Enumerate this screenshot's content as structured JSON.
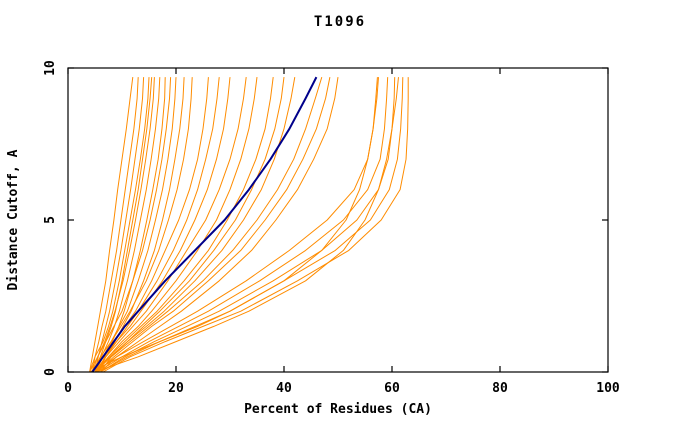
{
  "chart_data": {
    "type": "line",
    "title": "T1096",
    "xlabel": "Percent of Residues (CA)",
    "ylabel": "Distance Cutoff, A",
    "xlim": [
      0,
      100
    ],
    "ylim": [
      0,
      10
    ],
    "x_ticks": [
      0,
      20,
      40,
      60,
      80,
      100
    ],
    "y_ticks": [
      0,
      5,
      10
    ],
    "grid": false,
    "legend": "none",
    "colors": {
      "ensemble": "#FF8C00",
      "highlight": "#00008B",
      "frame": "#000000",
      "background": "#FFFFFF"
    },
    "y_grid": [
      0,
      0.5,
      1,
      1.5,
      2,
      3,
      4,
      5,
      6,
      7,
      8,
      9,
      9.7
    ],
    "series": [
      {
        "name": "highlighted-model",
        "color": "#00008B",
        "width": 2,
        "x": [
          4.5,
          6.5,
          8.5,
          10.5,
          13,
          18,
          23.5,
          29,
          33.5,
          37.5,
          41,
          44,
          46
        ]
      }
    ],
    "ensemble": {
      "name": "predicted-models",
      "color": "#FF8C00",
      "width": 1,
      "curves": [
        [
          4,
          4.5,
          5,
          5.5,
          6,
          7,
          7.7,
          8.5,
          9.2,
          10,
          10.8,
          11.5,
          12
        ],
        [
          4.5,
          5,
          5.7,
          6.3,
          7,
          8,
          9,
          9.8,
          10.6,
          11.4,
          12.2,
          12.8,
          13
        ],
        [
          5,
          5.6,
          6.3,
          7,
          7.7,
          8.8,
          9.8,
          10.7,
          11.6,
          12.4,
          13.2,
          13.8,
          14
        ],
        [
          4,
          5,
          6.5,
          7.5,
          8.3,
          9.5,
          10.5,
          11.5,
          12.5,
          13.4,
          14.2,
          14.8,
          15
        ],
        [
          5,
          6,
          7,
          8,
          8.8,
          10,
          11,
          12,
          13,
          13.8,
          14.6,
          15.2,
          15.5
        ],
        [
          4.5,
          5.5,
          6.8,
          7.8,
          8.7,
          10.2,
          11.4,
          12.5,
          13.5,
          14.4,
          15.2,
          15.8,
          16
        ],
        [
          5,
          6.2,
          7.5,
          8.6,
          9.5,
          11,
          12.3,
          13.4,
          14.5,
          15.4,
          16.2,
          16.8,
          17
        ],
        [
          5.5,
          6.8,
          8.2,
          9.4,
          10.4,
          12,
          13.4,
          14.6,
          15.7,
          16.7,
          17.4,
          17.9,
          18
        ],
        [
          4,
          5.5,
          7,
          8.5,
          10,
          12,
          13.8,
          15.2,
          16.4,
          17.4,
          18.2,
          18.8,
          19
        ],
        [
          5,
          6.5,
          8,
          9.5,
          11,
          13,
          14.8,
          16.2,
          17.5,
          18.5,
          19.3,
          19.8,
          20
        ],
        [
          5.5,
          7,
          8.7,
          10.2,
          11.7,
          14,
          16,
          17.5,
          18.8,
          19.8,
          20.7,
          21.3,
          21.5
        ],
        [
          4.5,
          6,
          8,
          9.8,
          11.5,
          14.5,
          16.8,
          18.6,
          20.2,
          21.4,
          22.3,
          22.8,
          23
        ],
        [
          5,
          6.5,
          8.5,
          10.5,
          12.5,
          15.5,
          18,
          20.5,
          22.5,
          24,
          25,
          25.7,
          26
        ],
        [
          5.5,
          7,
          9,
          11,
          13,
          16.5,
          19.5,
          22,
          24,
          25.5,
          26.8,
          27.6,
          28
        ],
        [
          4.5,
          6.5,
          9,
          11.5,
          13.5,
          17.5,
          20.8,
          23.5,
          25.8,
          27.5,
          28.8,
          29.6,
          30
        ],
        [
          5,
          7,
          9.5,
          12,
          14.5,
          18.5,
          22,
          25.5,
          28,
          30,
          31.5,
          32.5,
          33
        ],
        [
          5.5,
          7.5,
          10,
          13,
          15.5,
          20,
          24,
          27.5,
          30,
          32,
          33.5,
          34.5,
          35
        ],
        [
          5,
          7.5,
          10.5,
          13.5,
          16.5,
          21.5,
          26,
          29.5,
          32.5,
          34.8,
          36.5,
          37.5,
          38
        ],
        [
          6,
          8,
          11,
          14,
          17,
          22.5,
          27,
          31,
          34,
          36.5,
          38.3,
          39.5,
          40
        ],
        [
          5,
          7.8,
          11,
          14.5,
          17.8,
          23.5,
          28.5,
          32.5,
          35.8,
          38.2,
          40,
          41.3,
          42
        ],
        [
          5,
          8,
          11.5,
          15,
          18.5,
          25,
          30.5,
          35,
          38.8,
          41.8,
          44,
          45.8,
          47
        ],
        [
          5.5,
          8.5,
          12,
          15.5,
          19.5,
          26,
          32,
          36.5,
          40.5,
          43.5,
          46,
          47.7,
          48.5
        ],
        [
          6,
          9,
          13,
          17,
          21,
          28,
          34,
          38.5,
          42.5,
          45.5,
          48,
          49.4,
          50
        ],
        [
          5,
          9,
          14,
          19,
          24,
          33,
          41,
          48,
          53,
          55.5,
          56.5,
          57,
          57.3
        ],
        [
          5.5,
          10,
          15,
          20.5,
          26,
          35.5,
          44,
          51,
          55.5,
          57.8,
          58.6,
          59,
          59.2
        ],
        [
          6,
          10.5,
          16,
          22,
          28,
          38,
          47,
          53.5,
          57.5,
          59.3,
          60,
          60.4,
          60.5
        ],
        [
          6,
          11,
          17,
          23.5,
          30,
          40,
          49.5,
          56,
          59.5,
          61,
          61.6,
          61.9,
          62
        ],
        [
          6.5,
          11.5,
          18,
          25,
          32,
          42.5,
          52,
          58,
          61.5,
          62.6,
          62.9,
          63,
          63
        ],
        [
          5,
          13,
          20,
          27,
          33.5,
          44,
          51,
          55,
          57.5,
          59,
          60,
          60.8,
          61.2
        ],
        [
          4,
          10,
          17,
          24,
          30,
          40,
          47,
          51.5,
          54,
          55.5,
          56.5,
          57.2,
          57.5
        ]
      ]
    }
  }
}
